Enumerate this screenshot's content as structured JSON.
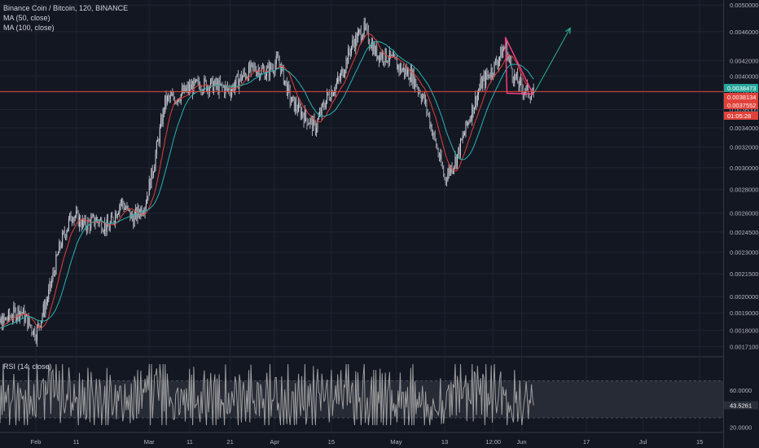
{
  "legend": {
    "symbol": "Binance Coin / Bitcoin, 120, BINANCE",
    "ma50": "MA (50, close)",
    "ma100": "MA (100, close)"
  },
  "rsi_panel": {
    "label": "RSI (14, close)"
  },
  "colors": {
    "background": "#131722",
    "grid": "#1f2433",
    "candle_up": "#d1d4dc",
    "candle_down": "#d1d4dc",
    "ma50": "#e0413a",
    "ma100": "#26b5b5",
    "horizontal_line": "#e0413a",
    "triangle": "#ff3f80",
    "projection_arrow": "#2bb59a",
    "rsi_line": "#9e9e9e",
    "rsi_band": "#2a2e39"
  },
  "chart_data": [
    {
      "type": "candlestick",
      "title": "Binance Coin / Bitcoin, 120, BINANCE",
      "yscale": "log",
      "ylim": [
        0.00166,
        0.00508
      ],
      "y_ticks": [
        "0.0050000",
        "0.0046000",
        "0.0042000",
        "0.0040000",
        "0.0038000",
        "0.0036000",
        "0.0034000",
        "0.0032000",
        "0.0030000",
        "0.0028000",
        "0.0026000",
        "0.0024500",
        "0.0023000",
        "0.0021500",
        "0.0020000",
        "0.0019000",
        "0.0018000",
        "0.0017100"
      ],
      "x_ticks": [
        "Feb",
        "11",
        "Mar",
        "11",
        "21",
        "Apr",
        "15",
        "May",
        "13",
        "12:00",
        "Jun",
        "17",
        "Jul",
        "15"
      ],
      "series_close": [
        [
          "Jan 20",
          0.0018
        ],
        [
          "Jan 24",
          0.00185
        ],
        [
          "Jan 28",
          0.00192
        ],
        [
          "Feb 1",
          0.00178
        ],
        [
          "Feb 4",
          0.002
        ],
        [
          "Feb 7",
          0.00235
        ],
        [
          "Feb 10",
          0.0026
        ],
        [
          "Feb 13",
          0.0025
        ],
        [
          "Feb 16",
          0.00255
        ],
        [
          "Feb 19",
          0.00248
        ],
        [
          "Feb 22",
          0.0027
        ],
        [
          "Feb 25",
          0.00255
        ],
        [
          "Feb 28",
          0.00268
        ],
        [
          "Mar 2",
          0.003
        ],
        [
          "Mar 5",
          0.0037
        ],
        [
          "Mar 8",
          0.00375
        ],
        [
          "Mar 11",
          0.00385
        ],
        [
          "Mar 14",
          0.0039
        ],
        [
          "Mar 17",
          0.00388
        ],
        [
          "Mar 21",
          0.00383
        ],
        [
          "Mar 24",
          0.004
        ],
        [
          "Mar 27",
          0.0041
        ],
        [
          "Mar 30",
          0.00405
        ],
        [
          "Apr 2",
          0.0042
        ],
        [
          "Apr 5",
          0.0037
        ],
        [
          "Apr 8",
          0.00355
        ],
        [
          "Apr 11",
          0.0034
        ],
        [
          "Apr 14",
          0.00375
        ],
        [
          "Apr 17",
          0.00395
        ],
        [
          "Apr 20",
          0.0044
        ],
        [
          "Apr 23",
          0.00465
        ],
        [
          "Apr 26",
          0.0043
        ],
        [
          "Apr 29",
          0.00425
        ],
        [
          "May 2",
          0.0041
        ],
        [
          "May 5",
          0.004
        ],
        [
          "May 8",
          0.0037
        ],
        [
          "May 11",
          0.0032
        ],
        [
          "May 13",
          0.0029
        ],
        [
          "May 16",
          0.0031
        ],
        [
          "May 19",
          0.0035
        ],
        [
          "May 22",
          0.0039
        ],
        [
          "May 25",
          0.0041
        ],
        [
          "May 28",
          0.0044
        ],
        [
          "May 30",
          0.004
        ],
        [
          "Jun 1",
          0.00385
        ],
        [
          "Jun 3",
          0.0038
        ],
        [
          "Jun 4",
          0.00378
        ]
      ],
      "series": [
        {
          "name": "MA (50, close)",
          "type": "line"
        },
        {
          "name": "MA (100, close)",
          "type": "line"
        }
      ],
      "price_labels": [
        {
          "text": "0.0038473",
          "color": "#26a69a"
        },
        {
          "text": "0.0038134",
          "color": "#e0413a"
        },
        {
          "text": "0.0037552",
          "color": "#e0413a"
        },
        {
          "text": "01:05:28",
          "color": "#e0413a"
        }
      ],
      "annotations": [
        {
          "type": "horizontal_line",
          "value": 0.00381
        },
        {
          "type": "triangle",
          "from": [
            "May 28",
            0.00452
          ],
          "to_apex": [
            "Jun 3",
            0.00378
          ],
          "base": [
            "May 29",
            0.00379
          ]
        },
        {
          "type": "arrow",
          "from": [
            "Jun 3",
            0.0038
          ],
          "to": [
            "Jun 13",
            0.00465
          ]
        }
      ]
    },
    {
      "type": "line",
      "title": "RSI (14, close)",
      "ylim": [
        15,
        95
      ],
      "y_ticks": [
        "60.0000",
        "43.5261",
        "20.0000"
      ],
      "band": [
        30,
        70
      ],
      "last_value": 43.5261
    }
  ]
}
